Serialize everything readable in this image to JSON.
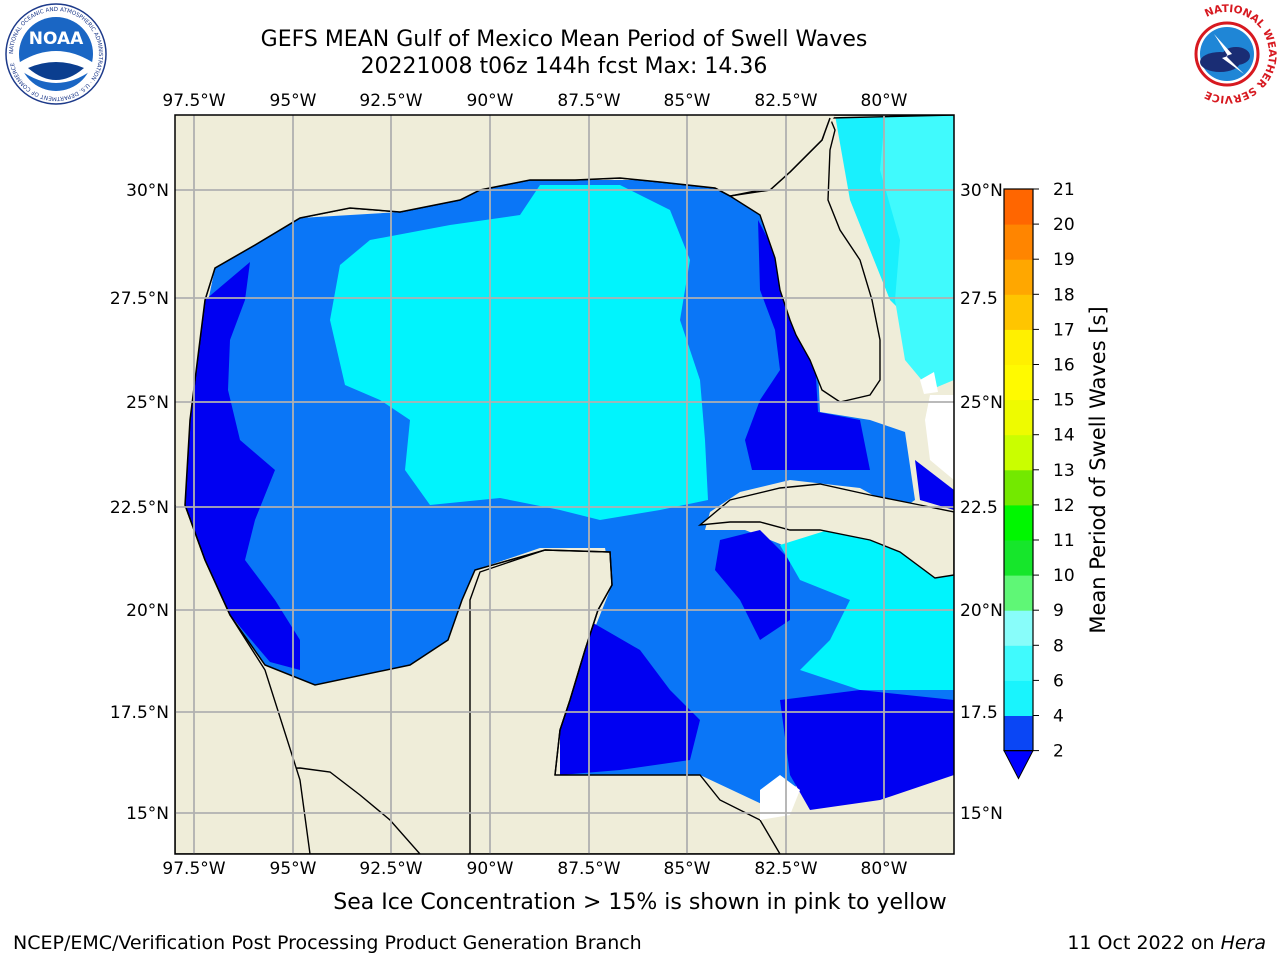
{
  "header": {
    "title_line1": "GEFS MEAN Gulf of Mexico Mean Period of Swell Waves",
    "title_line2": "20221008 t06z 144h fcst   Max: 14.36"
  },
  "logos": {
    "left": {
      "name": "noaa-logo",
      "text": "NOAA",
      "ring_text": "NATIONAL OCEANIC AND ATMOSPHERIC ADMINISTRATION · U.S. DEPARTMENT OF COMMERCE"
    },
    "right": {
      "name": "nws-logo",
      "ring_text": "NATIONAL WEATHER SERVICE"
    }
  },
  "map": {
    "top_lon_labels": [
      "97.5°W",
      "95°W",
      "92.5°W",
      "90°W",
      "87.5°W",
      "85°W",
      "82.5°W",
      "80°W"
    ],
    "bottom_lon_labels": [
      "97.5°W",
      "95°W",
      "92.5°W",
      "90°W",
      "87.5°W",
      "85°W",
      "82.5°W",
      "80°W"
    ],
    "left_lat_labels": [
      "30°N",
      "27.5°N",
      "25°N",
      "22.5°N",
      "20°N",
      "17.5°N",
      "15°N"
    ],
    "right_lat_labels": [
      "30°N",
      "27.5",
      "25°N",
      "22.5",
      "20°N",
      "17.5",
      "15°N"
    ],
    "land_color": "#efedd9",
    "grid_color": "#b0b0b0"
  },
  "colorbar": {
    "label": "Mean Period of Swell Waves [s]",
    "tick_labels": [
      "2",
      "4",
      "6",
      "8",
      "9",
      "10",
      "11",
      "12",
      "13",
      "14",
      "15",
      "16",
      "17",
      "18",
      "19",
      "20",
      "21"
    ],
    "colors": [
      "#0a46f5",
      "#19f4fd",
      "#40fafd",
      "#88fdfa",
      "#5ff776",
      "#16e62b",
      "#00f700",
      "#73e900",
      "#cafe00",
      "#eefb00",
      "#fffa00",
      "#fff000",
      "#ffc500",
      "#ffa700",
      "#ff8500",
      "#ff6600",
      "#ff3a00",
      "#ff0000"
    ],
    "extend_color": "#0000ff"
  },
  "footer": {
    "note": "Sea Ice Concentration > 15% is shown in pink to yellow",
    "credit": "NCEP/EMC/Verification Post Processing Product Generation Branch",
    "date": "11 Oct 2022 on",
    "machine": "Hera"
  }
}
